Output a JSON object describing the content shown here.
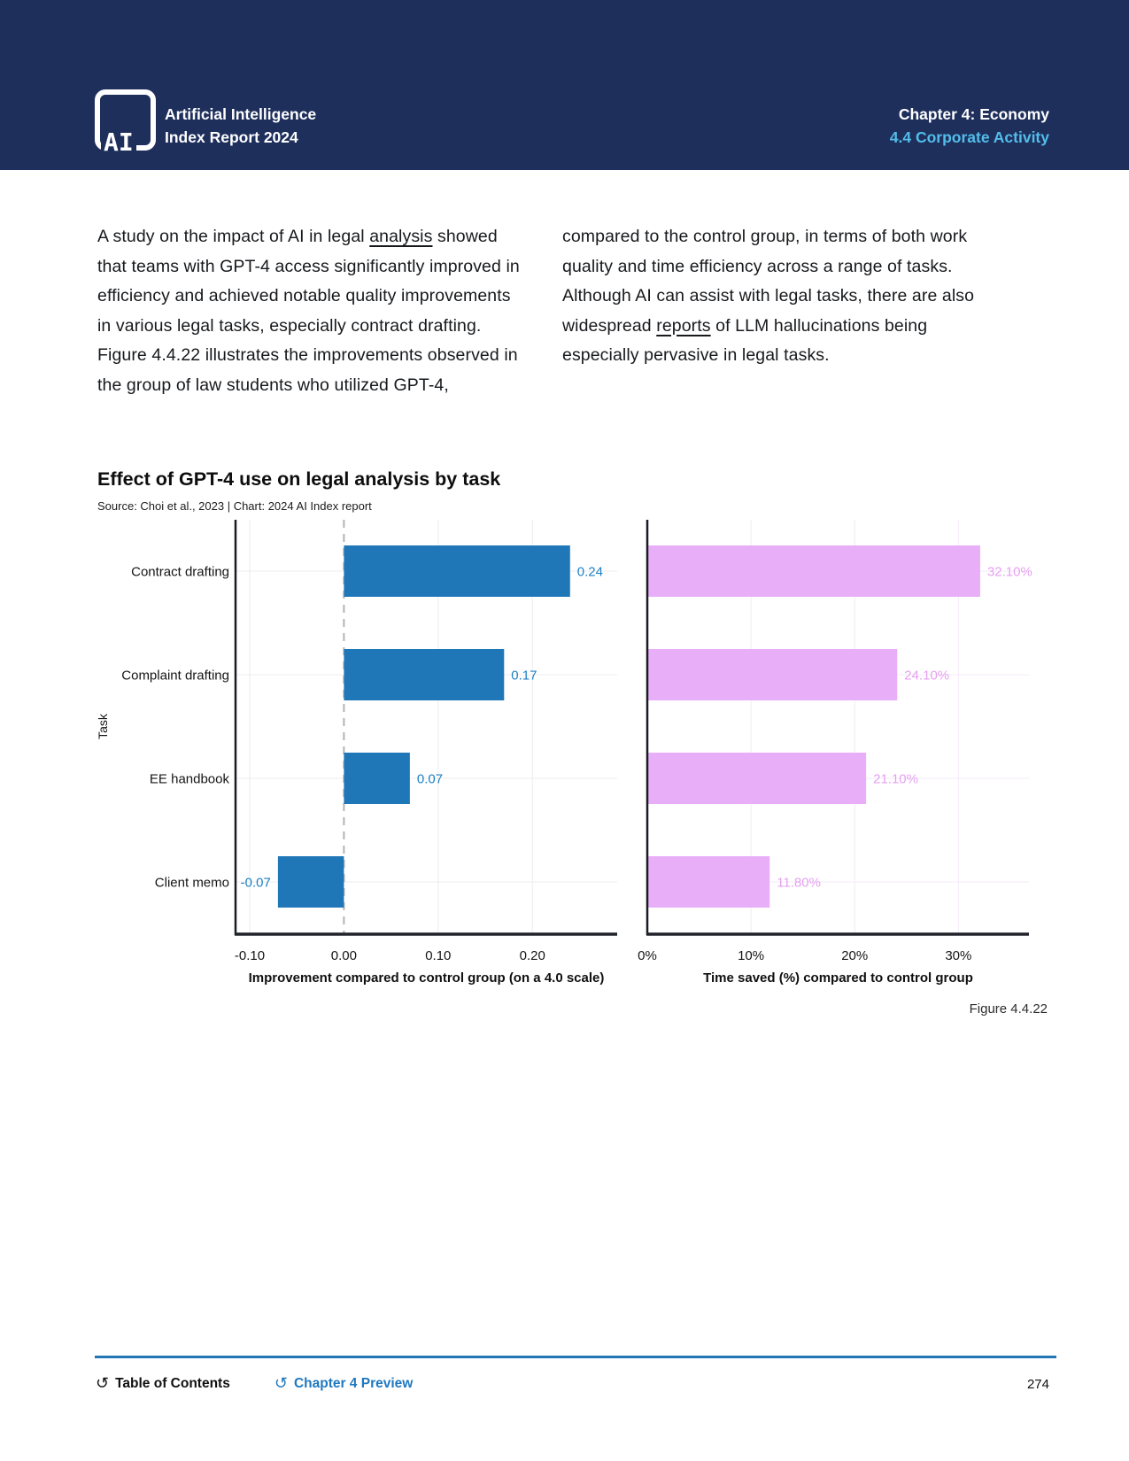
{
  "header": {
    "logo": "AI",
    "brand_line1": "Artificial Intelligence",
    "brand_line2": "Index Report 2024",
    "chapter": "Chapter 4: Economy",
    "section": "4.4 Corporate Activity",
    "bg_color": "#1e2f5c",
    "accent_color": "#53bdea"
  },
  "article": {
    "left_pre": "A study on the impact of AI in legal ",
    "left_link": "analysis",
    "left_post": " showed that teams with GPT-4 access significantly improved in efficiency and achieved notable quality improvements in various legal tasks, especially contract drafting. Figure 4.4.22 illustrates the improvements observed in the group of law students who utilized GPT-4,",
    "right_pre": "compared to the control group, in terms of both work quality and time efficiency across a range of tasks. Although AI can assist with legal tasks, there are also widespread ",
    "right_link": "reports",
    "right_post": " of LLM hallucinations being especially pervasive in legal tasks."
  },
  "figure": {
    "title": "Effect of GPT-4 use on legal analysis by task",
    "source": "Source: Choi et al., 2023 | Chart: 2024 AI Index report",
    "figure_label": "Figure 4.4.22"
  },
  "chart_data": [
    {
      "type": "bar",
      "orientation": "horizontal",
      "categories": [
        "Contract drafting",
        "Complaint drafting",
        "EE handbook",
        "Client memo"
      ],
      "values": [
        0.24,
        0.17,
        0.07,
        -0.07
      ],
      "labels": [
        "0.24",
        "0.17",
        "0.07",
        "-0.07"
      ],
      "xlabel": "Improvement compared to control group (on a 4.0 scale)",
      "ylabel": "Task",
      "xlim": [
        -0.115,
        0.29
      ],
      "xticks": [
        -0.1,
        0.0,
        0.1,
        0.2
      ],
      "xtick_labels": [
        "-0.10",
        "0.00",
        "0.10",
        "0.20"
      ],
      "zero_line": "dashed",
      "show_category_labels": true,
      "bar_color": "#2077b8",
      "label_color": "#1e80c4",
      "grid_color": "#ececec",
      "legend": "none"
    },
    {
      "type": "bar",
      "orientation": "horizontal",
      "categories": [
        "Contract drafting",
        "Complaint drafting",
        "EE handbook",
        "Client memo"
      ],
      "values": [
        32.1,
        24.1,
        21.1,
        11.8
      ],
      "labels": [
        "32.10%",
        "24.10%",
        "21.10%",
        "11.80%"
      ],
      "xlabel": "Time saved (%) compared to control group",
      "ylabel": "",
      "xlim": [
        0,
        36.8
      ],
      "xticks": [
        0,
        10,
        20,
        30
      ],
      "xtick_labels": [
        "0%",
        "10%",
        "20%",
        "30%"
      ],
      "zero_line": "none",
      "show_category_labels": false,
      "bar_color": "#e9aef8",
      "label_color": "#e5a0f2",
      "grid_color": "#f5eaf8",
      "legend": "none"
    }
  ],
  "footer": {
    "toc_label": "Table of Contents",
    "preview_label": "Chapter 4 Preview",
    "page_number": "274",
    "link_color": "#1f78c0",
    "rule_color": "#2077b4"
  }
}
